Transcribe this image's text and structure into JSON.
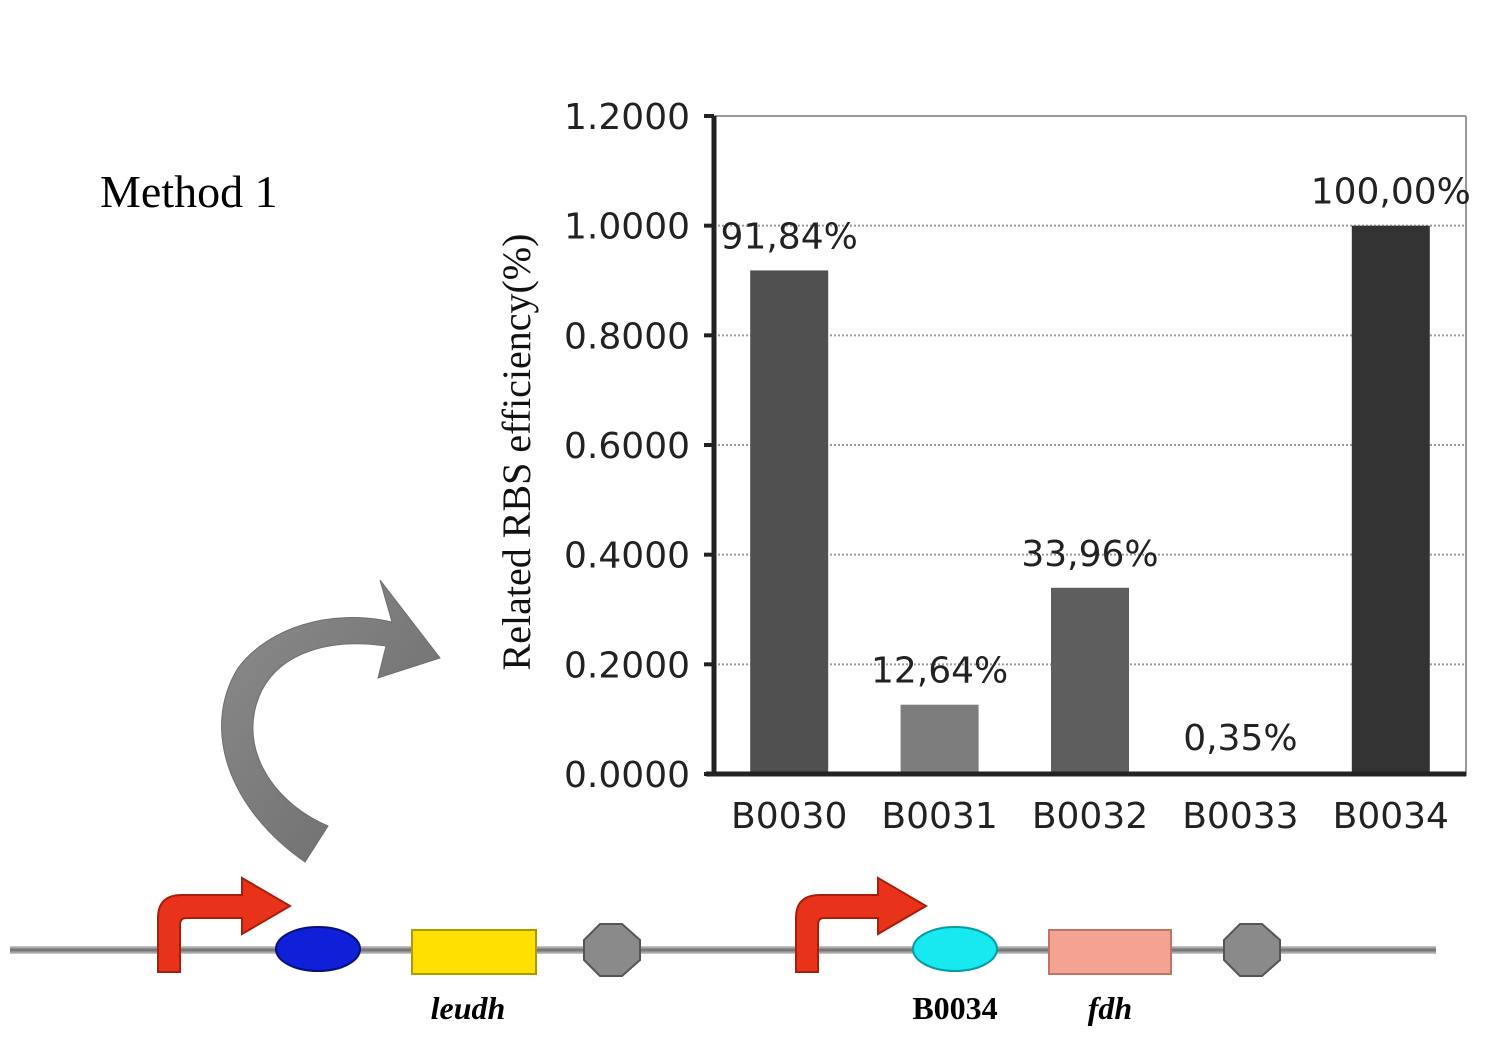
{
  "method_label": "Method 1",
  "chart_data": {
    "type": "bar",
    "categories": [
      "B0030",
      "B0031",
      "B0032",
      "B0033",
      "B0034"
    ],
    "values": [
      0.9184,
      0.1264,
      0.3396,
      0.0035,
      1.0
    ],
    "data_labels": [
      "91,84%",
      "12,64%",
      "33,96%",
      "0,35%",
      "100,00%"
    ],
    "bar_colors": [
      "#505050",
      "#7d7d7d",
      "#5e5e5e",
      "#8a8a8a",
      "#333333"
    ],
    "ylabel": "Related RBS efficiency(%)",
    "xlabel": "",
    "ylim": [
      0,
      1.2
    ],
    "yticks": [
      0.0,
      0.2,
      0.4,
      0.6,
      0.8,
      1.0,
      1.2
    ],
    "ytick_labels": [
      "0.0000",
      "0.2000",
      "0.4000",
      "0.6000",
      "0.8000",
      "1.0000",
      "1.2000"
    ],
    "grid": true,
    "grid_style": "dotted",
    "legend": "none"
  },
  "construct": {
    "gene1_label": "leudh",
    "rbs2_label": "B0034",
    "gene2_label": "fdh"
  },
  "colors": {
    "promoter": "#e8321a",
    "rbs1": "#1020d8",
    "rbs2": "#18e8f0",
    "gene1": "#ffe000",
    "gene2": "#f4a292",
    "terminator": "#8a8a8a",
    "arrow": "#7a7a7a"
  }
}
